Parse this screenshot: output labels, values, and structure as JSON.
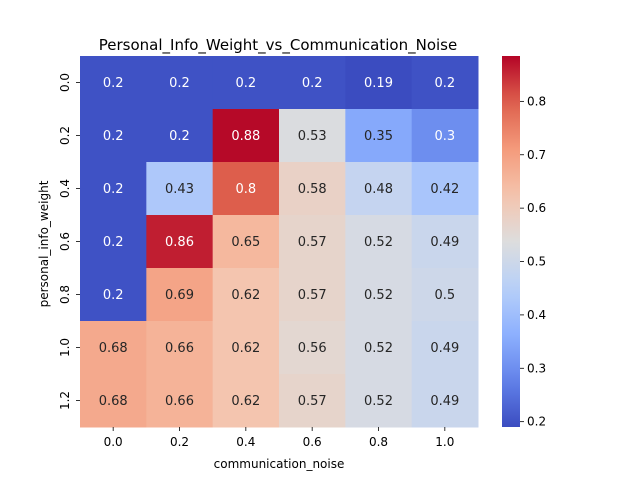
{
  "chart_data": {
    "type": "heatmap",
    "title": "Personal_Info_Weight_vs_Communication_Noise",
    "xlabel": "communication_noise",
    "ylabel": "personal_info_weight",
    "x_categories": [
      "0.0",
      "0.2",
      "0.4",
      "0.6",
      "0.8",
      "1.0"
    ],
    "y_categories": [
      "0.0",
      "0.2",
      "0.4",
      "0.6",
      "0.8",
      "1.0",
      "1.2"
    ],
    "values": [
      [
        0.2,
        0.2,
        0.2,
        0.2,
        0.19,
        0.2
      ],
      [
        0.2,
        0.2,
        0.88,
        0.53,
        0.35,
        0.3
      ],
      [
        0.2,
        0.43,
        0.8,
        0.58,
        0.48,
        0.42
      ],
      [
        0.2,
        0.86,
        0.65,
        0.57,
        0.52,
        0.49
      ],
      [
        0.2,
        0.69,
        0.62,
        0.57,
        0.52,
        0.5
      ],
      [
        0.68,
        0.66,
        0.62,
        0.56,
        0.52,
        0.49
      ],
      [
        0.68,
        0.66,
        0.62,
        0.57,
        0.52,
        0.49
      ]
    ],
    "colormap": "coolwarm",
    "colorbar": {
      "range": [
        0.19,
        0.885
      ],
      "ticks": [
        0.2,
        0.3,
        0.4,
        0.5,
        0.6,
        0.7,
        0.8
      ]
    },
    "grid": false,
    "legend": "colorbar-right"
  }
}
